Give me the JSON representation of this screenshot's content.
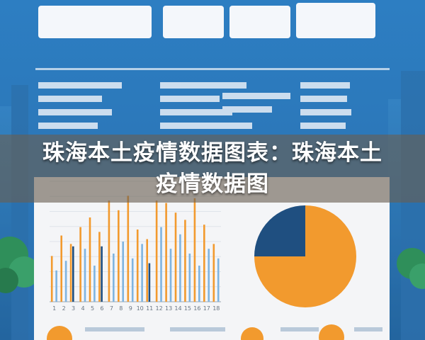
{
  "caption": "珠海本土疫情数据图表：珠海本土疫情数据图",
  "poster_title": "",
  "colors": {
    "background_blue": "#2f7fc0",
    "poster_panel": "#f4f5f7",
    "accent_orange": "#f29a2e",
    "accent_navy": "#1f4f80",
    "accent_light_blue": "#7fb4e0",
    "caption_band": "#6a5f52"
  },
  "chart_data": [
    {
      "type": "bar",
      "title": "",
      "xlabel": "",
      "ylabel": "",
      "ylim": [
        0,
        100
      ],
      "grid": true,
      "legend": "none",
      "categories": [
        "1",
        "2",
        "3",
        "4",
        "5",
        "6",
        "7",
        "8",
        "9",
        "10",
        "11",
        "12",
        "13",
        "14",
        "15",
        "16",
        "17",
        "18"
      ],
      "series": [
        {
          "color": "#f29a2e",
          "values": [
            38,
            55,
            48,
            62,
            70,
            58,
            84,
            76,
            88,
            60,
            52,
            84,
            82,
            74,
            68,
            86,
            64,
            48
          ]
        },
        {
          "color": "#1f4f80",
          "values": [
            0,
            0,
            46,
            0,
            0,
            46,
            0,
            0,
            0,
            0,
            32,
            0,
            0,
            0,
            0,
            0,
            0,
            0
          ]
        },
        {
          "color": "#7fb4e0",
          "values": [
            26,
            34,
            0,
            44,
            30,
            0,
            40,
            50,
            36,
            48,
            0,
            62,
            44,
            56,
            40,
            30,
            44,
            36
          ]
        }
      ]
    },
    {
      "type": "pie",
      "title": "",
      "legend": "none",
      "slices": [
        {
          "value": 75,
          "color": "#f29a2e"
        },
        {
          "value": 25,
          "color": "#1f4f80"
        }
      ]
    }
  ]
}
